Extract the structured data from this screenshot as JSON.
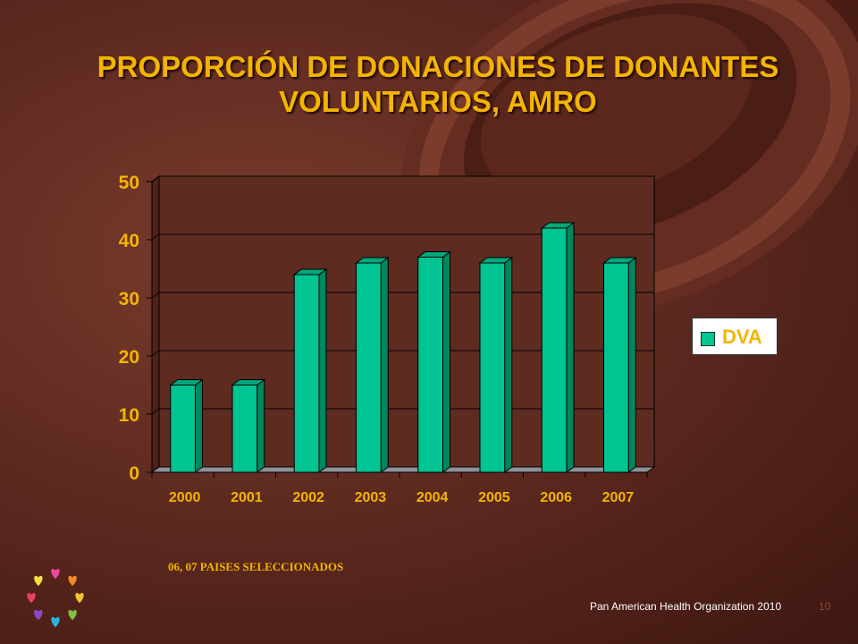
{
  "slide": {
    "title": "PROPORCIÓN DE DONACIONES DE DONANTES VOLUNTARIOS, AMRO",
    "footnote": "06, 07 PAISES SELECCIONADOS",
    "credit": "Pan American Health Organization 2010",
    "page_number": "10"
  },
  "chart_data": {
    "type": "bar",
    "title": "PROPORCIÓN DE DONACIONES DE DONANTES VOLUNTARIOS, AMRO",
    "categories": [
      "2000",
      "2001",
      "2002",
      "2003",
      "2004",
      "2005",
      "2006",
      "2007"
    ],
    "series": [
      {
        "name": "DVA",
        "values": [
          15,
          15,
          34,
          36,
          37,
          36,
          42,
          36
        ]
      }
    ],
    "ylim": [
      0,
      50
    ],
    "yticks": [
      0,
      10,
      20,
      30,
      40,
      50
    ],
    "grid": true,
    "legend": "right",
    "style": "3d",
    "colors": {
      "bar": "#00c491",
      "text": "#f3b500",
      "plot_bg": "#5e2b21"
    }
  },
  "colors": {
    "accent": "#f3b500",
    "background": "#5e2a20"
  }
}
